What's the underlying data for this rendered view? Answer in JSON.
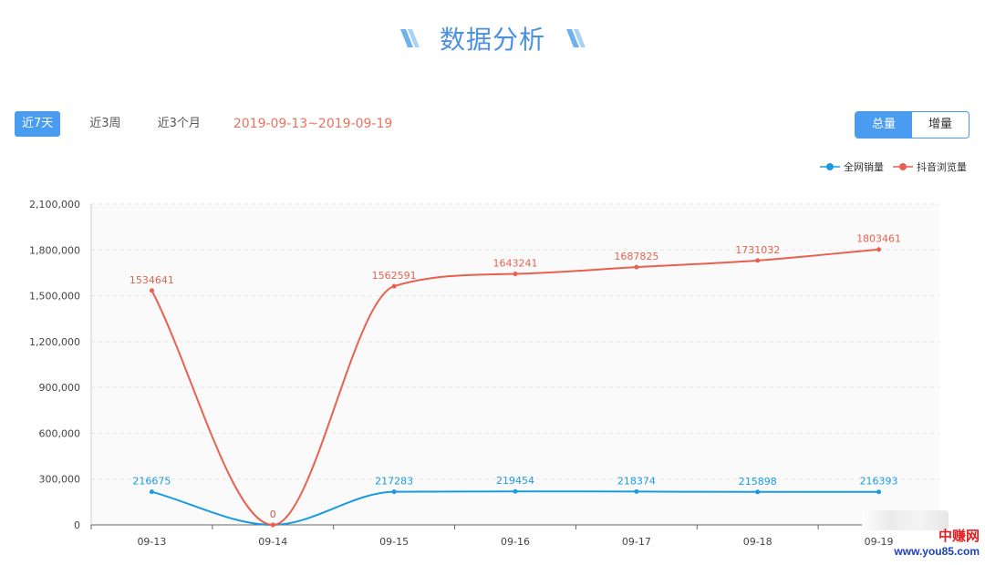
{
  "header": {
    "title": "数据分析"
  },
  "toolbar": {
    "ranges": [
      "近7天",
      "近3周",
      "近3个月"
    ],
    "active_range": 0,
    "date_range": "2019-09-13~2019-09-19"
  },
  "toggle": {
    "options": [
      "总量",
      "增量"
    ],
    "active": 0
  },
  "colors": {
    "accent": "#4a9cf0",
    "series1": "#1a9be0",
    "series2": "#e8614f",
    "date_text": "#e8745f"
  },
  "watermark": {
    "site": "中赚网",
    "url": "www.you85.com"
  },
  "chart_data": {
    "type": "line",
    "categories": [
      "09-13",
      "09-14",
      "09-15",
      "09-16",
      "09-17",
      "09-18",
      "09-19"
    ],
    "series": [
      {
        "name": "全网销量",
        "values": [
          216675,
          0,
          217283,
          219454,
          218374,
          215898,
          216393
        ]
      },
      {
        "name": "抖音浏览量",
        "values": [
          1534641,
          0,
          1562591,
          1643241,
          1687825,
          1731032,
          1803461
        ]
      }
    ],
    "yticks": [
      "0",
      "300,000",
      "600,000",
      "900,000",
      "1,200,000",
      "1,500,000",
      "1,800,000",
      "2,100,000"
    ],
    "ylim": [
      0,
      2100000
    ],
    "grid": true,
    "smooth": true,
    "legend_position": "top-right",
    "data_labels": true
  }
}
